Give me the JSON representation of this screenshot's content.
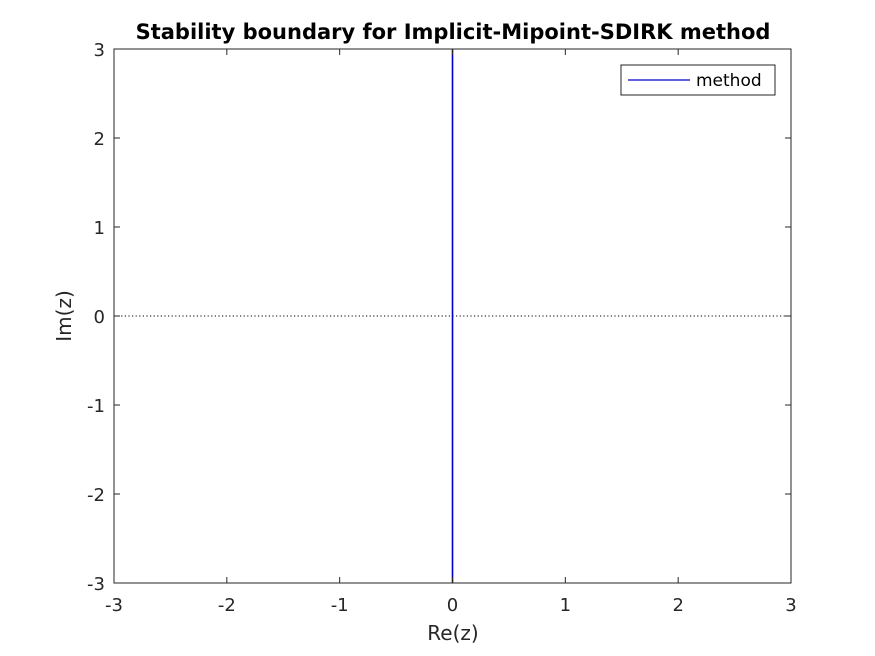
{
  "chart_data": {
    "type": "line",
    "title": "Stability boundary for Implicit-Mipoint-SDIRK method",
    "xlabel": "Re(z)",
    "ylabel": "Im(z)",
    "xlim": [
      -3,
      3
    ],
    "ylim": [
      -3,
      3
    ],
    "xticks": [
      -3,
      -2,
      -1,
      0,
      1,
      2,
      3
    ],
    "yticks": [
      -3,
      -2,
      -1,
      0,
      1,
      2,
      3
    ],
    "xtick_labels": [
      "-3",
      "-2",
      "-1",
      "0",
      "1",
      "2",
      "3"
    ],
    "ytick_labels": [
      "-3",
      "-2",
      "-1",
      "0",
      "1",
      "2",
      "3"
    ],
    "grid": false,
    "legend_position": "top-right",
    "series": [
      {
        "name": "method",
        "color": "#0000cc",
        "x": [
          0,
          0
        ],
        "y": [
          -3,
          3
        ]
      }
    ],
    "reference_line": {
      "axis": "y",
      "value": 0,
      "style": "dotted",
      "color": "#000000"
    }
  }
}
